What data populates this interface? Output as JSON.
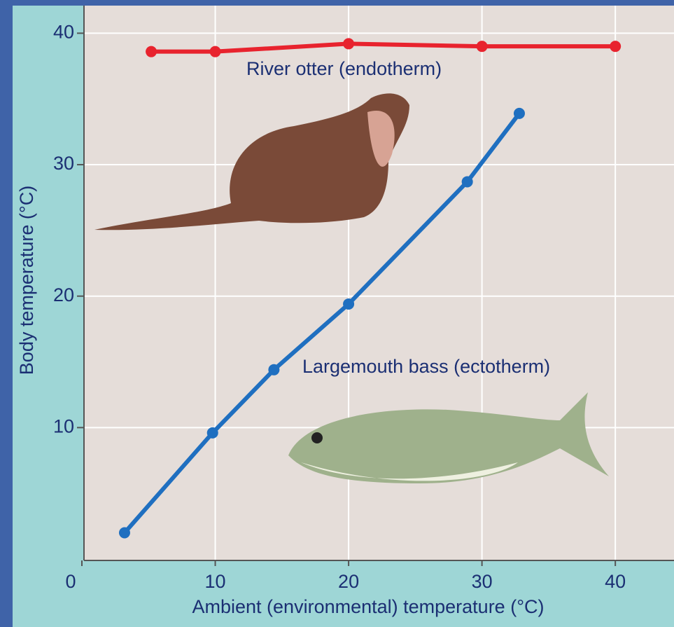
{
  "chart_data": {
    "type": "line",
    "xlabel": "Ambient (environmental) temperature (°C)",
    "ylabel": "Body temperature (°C)",
    "annotations": [
      "River otter (endotherm)",
      "Largemouth bass (ectotherm)"
    ],
    "series": [
      {
        "name": "River otter (endotherm)",
        "color": "#e8232e",
        "x": [
          5.2,
          10,
          20,
          30,
          40
        ],
        "values": [
          38.6,
          38.6,
          39.2,
          39.0,
          39.0
        ]
      },
      {
        "name": "Largemouth bass (ectotherm)",
        "color": "#1f6fc0",
        "x": [
          3.2,
          9.8,
          14.4,
          20,
          28.9,
          32.8
        ],
        "values": [
          2.0,
          9.6,
          14.4,
          19.4,
          28.7,
          33.9
        ]
      }
    ],
    "xlim": [
      0,
      44.4
    ],
    "ylim": [
      0,
      42.1
    ],
    "xticks": [
      0,
      10,
      20,
      30,
      40
    ],
    "yticks": [
      10,
      20,
      30,
      40
    ],
    "grid": true
  }
}
